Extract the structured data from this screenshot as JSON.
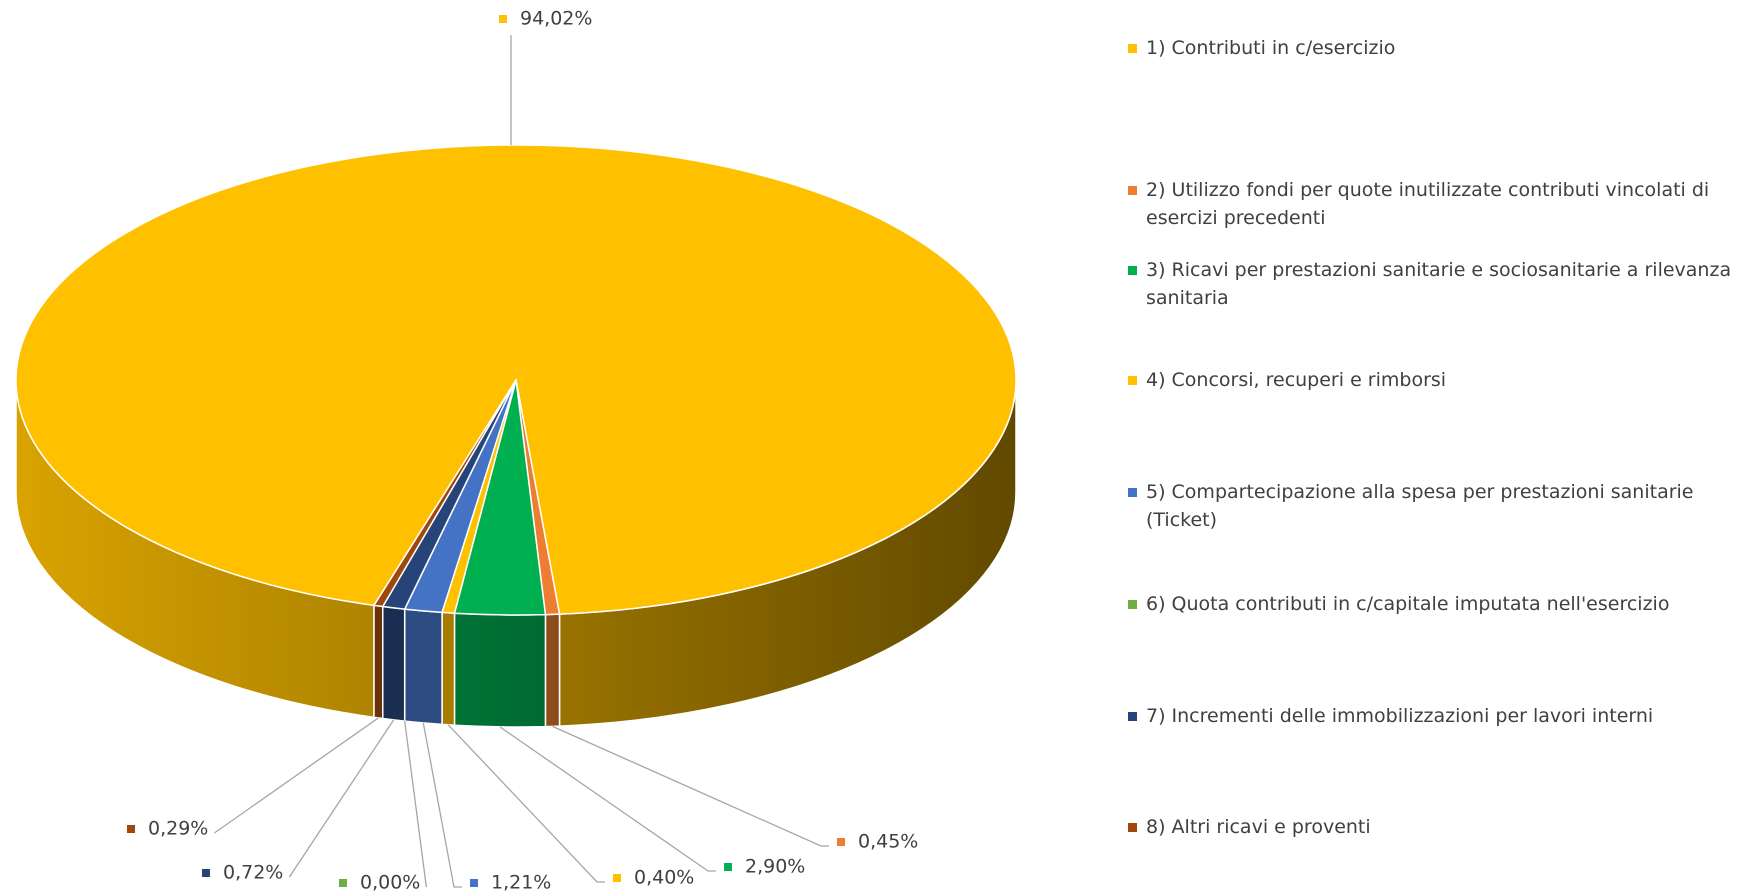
{
  "chart_data": {
    "type": "pie",
    "categories": [
      "1) Contributi in c/esercizio",
      "2) Utilizzo fondi per quote inutilizzate contributi vincolati di esercizi precedenti",
      "3) Ricavi per prestazioni sanitarie e sociosanitarie a rilevanza sanitaria",
      "4) Concorsi, recuperi e rimborsi",
      "5) Compartecipazione alla spesa per prestazioni sanitarie (Ticket)",
      "6) Quota contributi in c/capitale imputata nell'esercizio",
      "7) Incrementi delle immobilizzazioni per lavori interni",
      "8) Altri ricavi e proventi"
    ],
    "values": [
      94.02,
      0.45,
      2.9,
      0.4,
      1.21,
      0.0,
      0.72,
      0.29
    ],
    "value_labels": [
      "94,02%",
      "0,45%",
      "2,90%",
      "0,40%",
      "1,21%",
      "0,00%",
      "0,72%",
      "0,29%"
    ],
    "colors": [
      "#FFC000",
      "#ED7D31",
      "#00B050",
      "#FFC000",
      "#4472C4",
      "#70AD47",
      "#264478",
      "#9E480E"
    ],
    "legend": "right"
  }
}
